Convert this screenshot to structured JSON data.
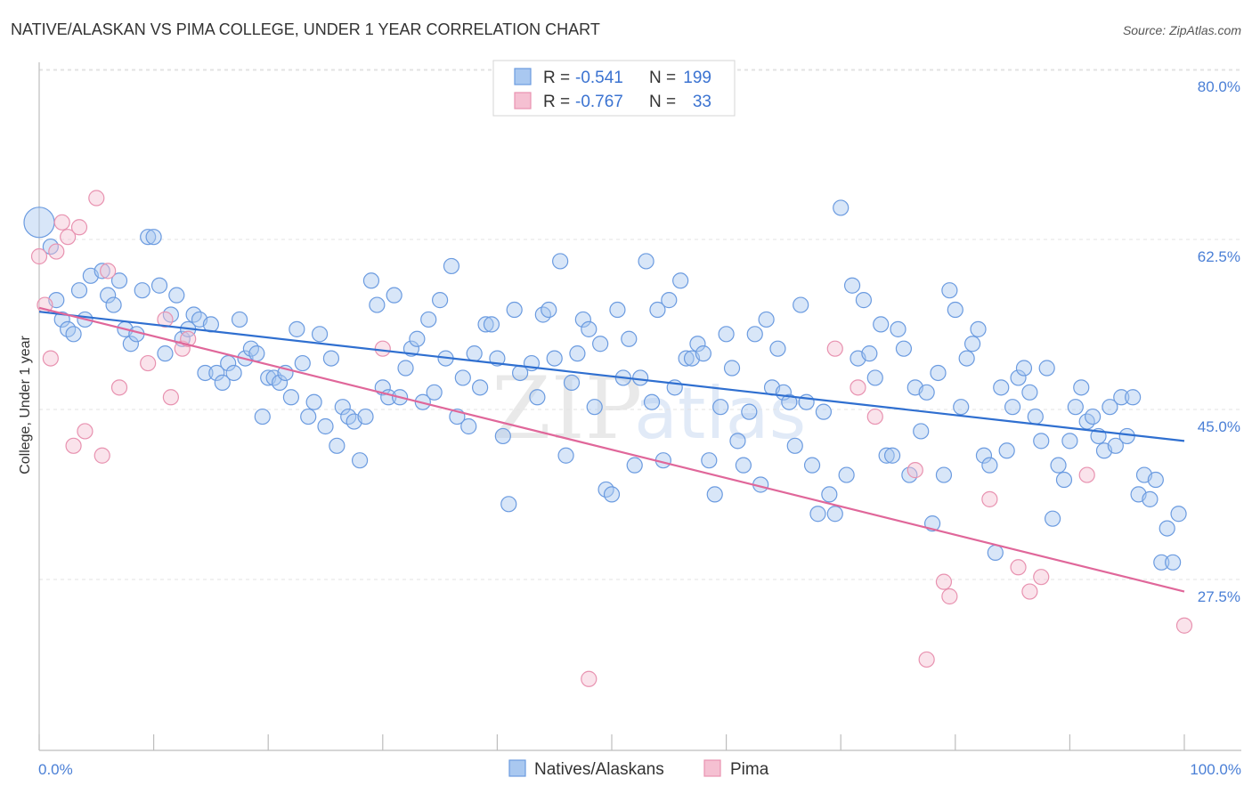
{
  "chart_data": {
    "type": "scatter",
    "title": "NATIVE/ALASKAN VS PIMA COLLEGE, UNDER 1 YEAR CORRELATION CHART",
    "source": "Source: ZipAtlas.com",
    "xlabel": "",
    "ylabel": "College, Under 1 year",
    "xlim": [
      0,
      100
    ],
    "ylim": [
      10,
      83
    ],
    "x_tick_labels": [
      "0.0%",
      "100.0%"
    ],
    "y_ticks": [
      {
        "value": 80.0,
        "label": "80.0%"
      },
      {
        "value": 62.5,
        "label": "62.5%"
      },
      {
        "value": 45.0,
        "label": "45.0%"
      },
      {
        "value": 27.5,
        "label": "27.5%"
      }
    ],
    "grid": "horizontal dashed",
    "legend_placement": "top-center",
    "watermark": {
      "zip": "ZIP",
      "atlas": "atlas"
    },
    "legend": [
      {
        "r_label": "R =",
        "r_value": "-0.541",
        "n_label": "N =",
        "n_value": "199"
      },
      {
        "r_label": "R =",
        "r_value": "-0.767",
        "n_label": "N =",
        "n_value": "33"
      }
    ],
    "series": [
      {
        "name": "Natives/Alaskans",
        "color": "#a9c8f0",
        "stroke": "#6b9be0",
        "trend_color": "#2f6fd0",
        "trend": {
          "x0": 0,
          "y0": 56.8,
          "x1": 100,
          "y1": 43.5
        },
        "points": [
          [
            0,
            66,
            3
          ],
          [
            1,
            63.5,
            1
          ],
          [
            1.5,
            58,
            1
          ],
          [
            2,
            56,
            1
          ],
          [
            2.5,
            55,
            1
          ],
          [
            3,
            54.5,
            1
          ],
          [
            3.5,
            59,
            1
          ],
          [
            4,
            56,
            1
          ],
          [
            4.5,
            60.5,
            1
          ],
          [
            5.5,
            61,
            1
          ],
          [
            6,
            58.5,
            1
          ],
          [
            6.5,
            57.5,
            1
          ],
          [
            7,
            60,
            1
          ],
          [
            7.5,
            55,
            1
          ],
          [
            8,
            53.5,
            1
          ],
          [
            8.5,
            54.5,
            1
          ],
          [
            9,
            59,
            1
          ],
          [
            9.5,
            64.5,
            1
          ],
          [
            10,
            64.5,
            1
          ],
          [
            10.5,
            59.5,
            1
          ],
          [
            11,
            52.5,
            1
          ],
          [
            11.5,
            56.5,
            1
          ],
          [
            12,
            58.5,
            1
          ],
          [
            12.5,
            54,
            1
          ],
          [
            13,
            55,
            1
          ],
          [
            13.5,
            56.5,
            1
          ],
          [
            14,
            56,
            1
          ],
          [
            14.5,
            50.5,
            1
          ],
          [
            15,
            55.5,
            1
          ],
          [
            15.5,
            50.5,
            1
          ],
          [
            16,
            49.5,
            1
          ],
          [
            16.5,
            51.5,
            1
          ],
          [
            17,
            50.5,
            1
          ],
          [
            17.5,
            56,
            1
          ],
          [
            18,
            52,
            1
          ],
          [
            18.5,
            53,
            1
          ],
          [
            19,
            52.5,
            1
          ],
          [
            19.5,
            46,
            1
          ],
          [
            20,
            50,
            1
          ],
          [
            20.5,
            50,
            1
          ],
          [
            21,
            49.5,
            1
          ],
          [
            21.5,
            50.5,
            1
          ],
          [
            22,
            48,
            1
          ],
          [
            22.5,
            55,
            1
          ],
          [
            23,
            51.5,
            1
          ],
          [
            23.5,
            46,
            1
          ],
          [
            24,
            47.5,
            1
          ],
          [
            24.5,
            54.5,
            1
          ],
          [
            25,
            45,
            1
          ],
          [
            25.5,
            52,
            1
          ],
          [
            26,
            43,
            1
          ],
          [
            26.5,
            47,
            1
          ],
          [
            27,
            46,
            1
          ],
          [
            27.5,
            45.5,
            1
          ],
          [
            28,
            41.5,
            1
          ],
          [
            28.5,
            46,
            1
          ],
          [
            29,
            60,
            1
          ],
          [
            29.5,
            57.5,
            1
          ],
          [
            30,
            49,
            1
          ],
          [
            30.5,
            48,
            1
          ],
          [
            31,
            58.5,
            1
          ],
          [
            31.5,
            48,
            1
          ],
          [
            32,
            51,
            1
          ],
          [
            32.5,
            53,
            1
          ],
          [
            33,
            54,
            1
          ],
          [
            33.5,
            47.5,
            1
          ],
          [
            34,
            56,
            1
          ],
          [
            34.5,
            48.5,
            1
          ],
          [
            35,
            58,
            1
          ],
          [
            35.5,
            52,
            1
          ],
          [
            36,
            61.5,
            1
          ],
          [
            36.5,
            46,
            1
          ],
          [
            37,
            50,
            1
          ],
          [
            37.5,
            45,
            1
          ],
          [
            38,
            52.5,
            1
          ],
          [
            38.5,
            49,
            1
          ],
          [
            39,
            55.5,
            1
          ],
          [
            39.5,
            55.5,
            1
          ],
          [
            40,
            52,
            1
          ],
          [
            40.5,
            44,
            1
          ],
          [
            41,
            37,
            1
          ],
          [
            41.5,
            57,
            1
          ],
          [
            42,
            50.5,
            1
          ],
          [
            43,
            51.5,
            1
          ],
          [
            43.5,
            48,
            1
          ],
          [
            44,
            56.5,
            1
          ],
          [
            44.5,
            57,
            1
          ],
          [
            45,
            52,
            1
          ],
          [
            45.5,
            62,
            1
          ],
          [
            46,
            42,
            1
          ],
          [
            46.5,
            49.5,
            1
          ],
          [
            47,
            52.5,
            1
          ],
          [
            47.5,
            56,
            1
          ],
          [
            48,
            55,
            1
          ],
          [
            48.5,
            47,
            1
          ],
          [
            49,
            53.5,
            1
          ],
          [
            49.5,
            38.5,
            1
          ],
          [
            50,
            38,
            1
          ],
          [
            50.5,
            57,
            1
          ],
          [
            51,
            50,
            1
          ],
          [
            51.5,
            54,
            1
          ],
          [
            52,
            41,
            1
          ],
          [
            52.5,
            50,
            1
          ],
          [
            53,
            62,
            1
          ],
          [
            53.5,
            47.5,
            1
          ],
          [
            54,
            57,
            1
          ],
          [
            54.5,
            41.5,
            1
          ],
          [
            55,
            58,
            1
          ],
          [
            55.5,
            49,
            1
          ],
          [
            56,
            60,
            1
          ],
          [
            56.5,
            52,
            1
          ],
          [
            57,
            52,
            1
          ],
          [
            57.5,
            53.5,
            1
          ],
          [
            58,
            52.5,
            1
          ],
          [
            58.5,
            41.5,
            1
          ],
          [
            59,
            38,
            1
          ],
          [
            59.5,
            47,
            1
          ],
          [
            60,
            54.5,
            1
          ],
          [
            60.5,
            51,
            1
          ],
          [
            61,
            43.5,
            1
          ],
          [
            61.5,
            41,
            1
          ],
          [
            62,
            46.5,
            1
          ],
          [
            62.5,
            54.5,
            1
          ],
          [
            63,
            39,
            1
          ],
          [
            63.5,
            56,
            1
          ],
          [
            64,
            49,
            1
          ],
          [
            64.5,
            53,
            1
          ],
          [
            65,
            48.5,
            1
          ],
          [
            65.5,
            47.5,
            1
          ],
          [
            66,
            43,
            1
          ],
          [
            66.5,
            57.5,
            1
          ],
          [
            67,
            47.5,
            1
          ],
          [
            67.5,
            41,
            1
          ],
          [
            68,
            36,
            1
          ],
          [
            68.5,
            46.5,
            1
          ],
          [
            69,
            38,
            1
          ],
          [
            69.5,
            36,
            1
          ],
          [
            70,
            67.5,
            1
          ],
          [
            70.5,
            40,
            1
          ],
          [
            71,
            59.5,
            1
          ],
          [
            71.5,
            52,
            1
          ],
          [
            72,
            58,
            1
          ],
          [
            72.5,
            52.5,
            1
          ],
          [
            73,
            50,
            1
          ],
          [
            73.5,
            55.5,
            1
          ],
          [
            74,
            42,
            1
          ],
          [
            74.5,
            42,
            1
          ],
          [
            75,
            55,
            1
          ],
          [
            75.5,
            53,
            1
          ],
          [
            76,
            40,
            1
          ],
          [
            76.5,
            49,
            1
          ],
          [
            77,
            44.5,
            1
          ],
          [
            77.5,
            48.5,
            1
          ],
          [
            78,
            35,
            1
          ],
          [
            78.5,
            50.5,
            1
          ],
          [
            79,
            40,
            1
          ],
          [
            79.5,
            59,
            1
          ],
          [
            80,
            57,
            1
          ],
          [
            80.5,
            47,
            1
          ],
          [
            81,
            52,
            1
          ],
          [
            81.5,
            53.5,
            1
          ],
          [
            82,
            55,
            1
          ],
          [
            82.5,
            42,
            1
          ],
          [
            83,
            41,
            1
          ],
          [
            83.5,
            32,
            1
          ],
          [
            84,
            49,
            1
          ],
          [
            84.5,
            42.5,
            1
          ],
          [
            85,
            47,
            1
          ],
          [
            85.5,
            50,
            1
          ],
          [
            86,
            51,
            1
          ],
          [
            86.5,
            48.5,
            1
          ],
          [
            87,
            46,
            1
          ],
          [
            87.5,
            43.5,
            1
          ],
          [
            88,
            51,
            1
          ],
          [
            88.5,
            35.5,
            1
          ],
          [
            89,
            41,
            1
          ],
          [
            89.5,
            39.5,
            1
          ],
          [
            90,
            43.5,
            1
          ],
          [
            90.5,
            47,
            1
          ],
          [
            91,
            49,
            1
          ],
          [
            91.5,
            45.5,
            1
          ],
          [
            92,
            46,
            1
          ],
          [
            92.5,
            44,
            1
          ],
          [
            93,
            42.5,
            1
          ],
          [
            93.5,
            47,
            1
          ],
          [
            94,
            43,
            1
          ],
          [
            94.5,
            48,
            1
          ],
          [
            95,
            44,
            1
          ],
          [
            95.5,
            48,
            1
          ],
          [
            96,
            38,
            1
          ],
          [
            96.5,
            40,
            1
          ],
          [
            97,
            37.5,
            1
          ],
          [
            97.5,
            39.5,
            1
          ],
          [
            98,
            31,
            1
          ],
          [
            98.5,
            34.5,
            1
          ],
          [
            99,
            31,
            1
          ],
          [
            99.5,
            36,
            1
          ]
        ]
      },
      {
        "name": "Pima",
        "color": "#f5c0d2",
        "stroke": "#e892b0",
        "trend_color": "#e0679a",
        "trend": {
          "x0": 0,
          "y0": 57.2,
          "x1": 100,
          "y1": 28.0
        },
        "points": [
          [
            0,
            62.5,
            1
          ],
          [
            0.5,
            57.5,
            1
          ],
          [
            1,
            52,
            1
          ],
          [
            1.5,
            63,
            1
          ],
          [
            2,
            66,
            1
          ],
          [
            2.5,
            64.5,
            1
          ],
          [
            3,
            43,
            1
          ],
          [
            3.5,
            65.5,
            1
          ],
          [
            4,
            44.5,
            1
          ],
          [
            5,
            68.5,
            1
          ],
          [
            5.5,
            42,
            1
          ],
          [
            6,
            61,
            1
          ],
          [
            7,
            49,
            1
          ],
          [
            9.5,
            51.5,
            1
          ],
          [
            11,
            56,
            1
          ],
          [
            11.5,
            48,
            1
          ],
          [
            12.5,
            53,
            1
          ],
          [
            13,
            54,
            1
          ],
          [
            30,
            53,
            1
          ],
          [
            48,
            19,
            1
          ],
          [
            69.5,
            53,
            1
          ],
          [
            71.5,
            49,
            1
          ],
          [
            73,
            46,
            1
          ],
          [
            76.5,
            40.5,
            1
          ],
          [
            77.5,
            21,
            1
          ],
          [
            79,
            29,
            1
          ],
          [
            79.5,
            27.5,
            1
          ],
          [
            83,
            37.5,
            1
          ],
          [
            85.5,
            30.5,
            1
          ],
          [
            86.5,
            28,
            1
          ],
          [
            87.5,
            29.5,
            1
          ],
          [
            91.5,
            40,
            1
          ],
          [
            100,
            24.5,
            1
          ]
        ]
      }
    ]
  }
}
